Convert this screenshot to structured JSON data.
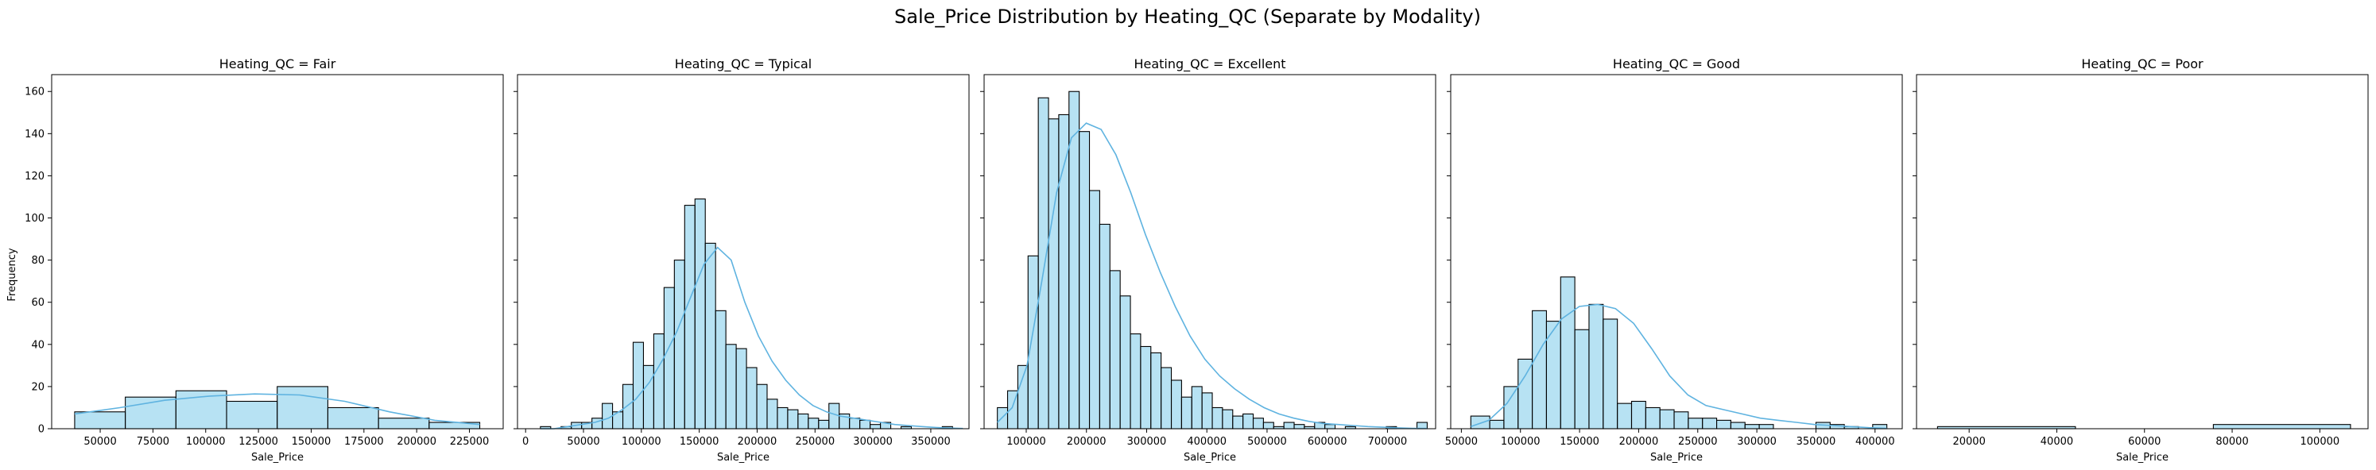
{
  "title": "Sale_Price Distribution by Heating_QC (Separate by Modality)",
  "chart_data": {
    "type": "histogram",
    "ylabel": "Frequency",
    "ylim": [
      0,
      168
    ],
    "yticks": [
      0,
      20,
      40,
      60,
      80,
      100,
      120,
      140,
      160
    ],
    "sharey": true,
    "bar_color": "#87ceeb",
    "kde_color": "#5fb3e0",
    "panels": [
      {
        "title": "Heating_QC = Fair",
        "xlabel": "Sale_Price",
        "xlim": [
          27000,
          241000
        ],
        "xticks": [
          50000,
          75000,
          100000,
          125000,
          150000,
          175000,
          200000,
          225000
        ],
        "bins": [
          37900,
          61900,
          85900,
          109900,
          133900,
          157900,
          181900,
          205900,
          229900
        ],
        "counts": [
          8,
          15,
          18,
          13,
          20,
          10,
          5,
          3
        ],
        "kde": [
          7,
          10,
          13.5,
          15.5,
          16.5,
          16,
          13,
          8,
          4,
          2
        ]
      },
      {
        "title": "Heating_QC = Typical",
        "xlabel": "Sale_Price",
        "xlim": [
          -7000,
          383000
        ],
        "xticks": [
          0,
          50000,
          100000,
          150000,
          200000,
          250000,
          300000,
          350000
        ],
        "bins": [
          12800,
          21700,
          30600,
          39500,
          48400,
          57300,
          66200,
          75100,
          84000,
          92900,
          101800,
          110700,
          119600,
          128500,
          137400,
          146300,
          155200,
          164100,
          173000,
          181900,
          190800,
          199700,
          208600,
          217500,
          226400,
          235300,
          244200,
          253100,
          262000,
          270900,
          279800,
          288700,
          297600,
          306500,
          315400,
          324300,
          333200,
          342100,
          351000,
          359900,
          368800,
          377700
        ],
        "counts": [
          1,
          0,
          1,
          3,
          3,
          5,
          12,
          8,
          21,
          41,
          30,
          45,
          67,
          80,
          106,
          109,
          88,
          56,
          40,
          38,
          29,
          21,
          14,
          10,
          9,
          7,
          5,
          4,
          12,
          7,
          5,
          4,
          2,
          3,
          0,
          1,
          0,
          0,
          0,
          1,
          0
        ],
        "kde": [
          0,
          0,
          1,
          2,
          3,
          5,
          9,
          14,
          22,
          33,
          46,
          62,
          78,
          86,
          80,
          60,
          44,
          32,
          23,
          16,
          11,
          8,
          6,
          5,
          4,
          3,
          2,
          1.5,
          1,
          0.6,
          0.3,
          0.1
        ]
      },
      {
        "title": "Heating_QC = Excellent",
        "xlabel": "Sale_Price",
        "xlim": [
          30000,
          780000
        ],
        "xticks": [
          100000,
          200000,
          300000,
          400000,
          500000,
          600000,
          700000
        ],
        "bins": [
          52000,
          69000,
          86000,
          103000,
          120000,
          137000,
          154000,
          171000,
          188000,
          205000,
          222000,
          239000,
          256000,
          273000,
          290000,
          307000,
          324000,
          341000,
          358000,
          375000,
          392000,
          409000,
          426000,
          443000,
          460000,
          477000,
          494000,
          511000,
          528000,
          545000,
          562000,
          579000,
          596000,
          613000,
          630000,
          647000,
          664000,
          681000,
          698000,
          715000,
          732000,
          749000,
          766000
        ],
        "counts": [
          10,
          18,
          30,
          82,
          157,
          147,
          149,
          160,
          141,
          113,
          97,
          75,
          63,
          45,
          39,
          36,
          29,
          23,
          15,
          20,
          17,
          10,
          9,
          6,
          7,
          5,
          3,
          1,
          3,
          2,
          1,
          3,
          2,
          0,
          1,
          0,
          0,
          0,
          1,
          0,
          0,
          3
        ],
        "kde": [
          3,
          10,
          30,
          70,
          112,
          138,
          145,
          142,
          130,
          112,
          92,
          74,
          58,
          44,
          33,
          25,
          19,
          14,
          10,
          7,
          5,
          3.5,
          2.5,
          2,
          1.5,
          1,
          0.7,
          0.4,
          0.2,
          0.1
        ]
      },
      {
        "title": "Heating_QC = Good",
        "xlabel": "Sale_Price",
        "xlim": [
          41000,
          423000
        ],
        "xticks": [
          50000,
          100000,
          150000,
          200000,
          250000,
          300000,
          350000,
          400000
        ],
        "bins": [
          58000,
          74000,
          86000,
          98000,
          110000,
          122000,
          134000,
          146000,
          158000,
          170000,
          182000,
          194000,
          206000,
          218000,
          230000,
          242000,
          254000,
          266000,
          278000,
          290000,
          302000,
          314000,
          326000,
          338000,
          350000,
          362000,
          374000,
          386000,
          398000,
          410000
        ],
        "counts": [
          6,
          4,
          20,
          33,
          56,
          51,
          72,
          47,
          59,
          52,
          12,
          13,
          10,
          9,
          8,
          5,
          5,
          4,
          3,
          2,
          2,
          0,
          0,
          0,
          3,
          2,
          1,
          0,
          2
        ],
        "kde": [
          1,
          4,
          12,
          25,
          40,
          52,
          58,
          59,
          57,
          50,
          38,
          25,
          16,
          11,
          9,
          7,
          5,
          4,
          3,
          2,
          1.5,
          1,
          0.5,
          0.2
        ]
      },
      {
        "title": "Heating_QC = Poor",
        "xlabel": "Sale_Price",
        "xlim": [
          8000,
          111000
        ],
        "xticks": [
          20000,
          40000,
          60000,
          80000,
          100000
        ],
        "bins": [
          12789,
          44250,
          75710,
          107000
        ],
        "counts": [
          1,
          0,
          2
        ],
        "kde": []
      }
    ]
  }
}
